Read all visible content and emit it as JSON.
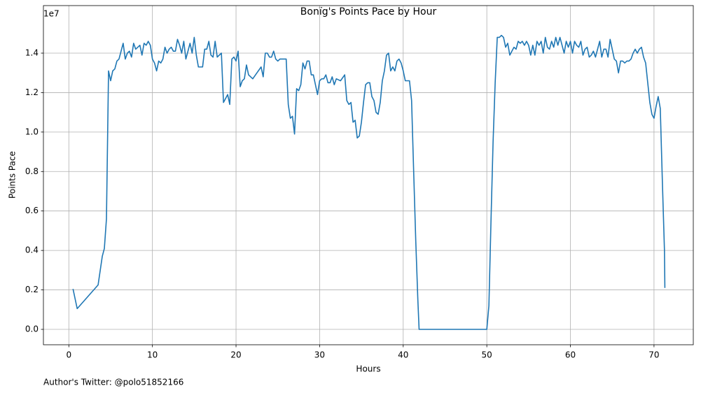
{
  "chart_data": {
    "type": "line",
    "title": "Bonïg's Points Pace by Hour",
    "x_label": "Hours",
    "y_label": "Points Pace",
    "y_offset_label": "1e7",
    "footnote": "Author's Twitter: @polo51852166",
    "color": "#1f77b4",
    "grid": true,
    "xlim": [
      -3.04,
      74.7
    ],
    "ylim": [
      -780000,
      16410000
    ],
    "xticks": [
      0,
      10,
      20,
      30,
      40,
      50,
      60,
      70
    ],
    "yticks": [
      {
        "value": 0,
        "label": "0.0"
      },
      {
        "value": 2000000,
        "label": "0.2"
      },
      {
        "value": 4000000,
        "label": "0.4"
      },
      {
        "value": 6000000,
        "label": "0.6"
      },
      {
        "value": 8000000,
        "label": "0.8"
      },
      {
        "value": 10000000,
        "label": "1.0"
      },
      {
        "value": 12000000,
        "label": "1.2"
      },
      {
        "value": 14000000,
        "label": "1.4"
      }
    ],
    "x": [
      0.5,
      1.0,
      3.5,
      4.0,
      4.25,
      4.5,
      4.75,
      5.0,
      5.25,
      5.5,
      5.75,
      6.0,
      6.5,
      6.75,
      7.0,
      7.25,
      7.5,
      7.75,
      8.0,
      8.5,
      8.75,
      9.0,
      9.25,
      9.5,
      9.75,
      10.0,
      10.25,
      10.5,
      10.75,
      11.0,
      11.25,
      11.5,
      11.75,
      12.0,
      12.25,
      12.5,
      12.75,
      13.0,
      13.25,
      13.5,
      13.75,
      14.0,
      14.5,
      14.75,
      15.0,
      15.25,
      15.5,
      16.0,
      16.25,
      16.5,
      16.75,
      17.0,
      17.25,
      17.5,
      17.75,
      18.25,
      18.5,
      18.75,
      19.0,
      19.25,
      19.5,
      19.75,
      20.0,
      20.25,
      20.5,
      20.75,
      21.0,
      21.25,
      21.5,
      22.0,
      22.5,
      23.0,
      23.25,
      23.5,
      23.75,
      24.0,
      24.25,
      24.5,
      24.75,
      25.0,
      25.25,
      26.0,
      26.25,
      26.5,
      26.75,
      27.0,
      27.25,
      27.5,
      27.75,
      28.0,
      28.25,
      28.5,
      28.75,
      29.0,
      29.25,
      29.5,
      29.75,
      30.0,
      30.25,
      30.5,
      30.75,
      31.0,
      31.25,
      31.5,
      31.75,
      32.0,
      32.5,
      33.0,
      33.25,
      33.5,
      33.75,
      34.0,
      34.25,
      34.5,
      34.75,
      35.0,
      35.25,
      35.5,
      35.75,
      36.0,
      36.25,
      36.5,
      36.75,
      37.0,
      37.25,
      37.5,
      37.75,
      38.0,
      38.25,
      38.5,
      38.75,
      39.0,
      39.25,
      39.5,
      39.75,
      40.0,
      40.25,
      40.5,
      40.75,
      41.0,
      41.25,
      41.5,
      41.75,
      41.9,
      50.0,
      50.25,
      50.5,
      50.75,
      51.0,
      51.25,
      51.5,
      51.75,
      52.0,
      52.25,
      52.5,
      52.75,
      53.0,
      53.25,
      53.5,
      53.75,
      54.0,
      54.25,
      54.5,
      54.75,
      55.0,
      55.25,
      55.5,
      55.75,
      56.0,
      56.25,
      56.5,
      56.75,
      57.0,
      57.25,
      57.5,
      57.75,
      58.0,
      58.25,
      58.5,
      58.75,
      59.0,
      59.25,
      59.5,
      59.75,
      60.0,
      60.25,
      60.5,
      60.75,
      61.0,
      61.25,
      61.5,
      61.75,
      62.0,
      62.25,
      62.5,
      62.75,
      63.0,
      63.25,
      63.5,
      63.75,
      64.0,
      64.25,
      64.5,
      64.75,
      65.0,
      65.25,
      65.5,
      65.75,
      66.0,
      66.25,
      66.5,
      66.75,
      67.0,
      67.25,
      67.5,
      67.75,
      68.0,
      68.25,
      68.5,
      68.75,
      69.0,
      69.25,
      69.5,
      69.75,
      70.0,
      70.25,
      70.5,
      70.75,
      71.0,
      71.25,
      71.3
    ],
    "values": [
      2050000,
      1050000,
      2250000,
      3700000,
      4100000,
      5600000,
      13100000,
      12600000,
      13100000,
      13200000,
      13600000,
      13700000,
      14500000,
      13700000,
      14000000,
      14100000,
      13800000,
      14500000,
      14200000,
      14400000,
      13900000,
      14500000,
      14400000,
      14600000,
      14400000,
      13700000,
      13500000,
      13100000,
      13600000,
      13500000,
      13700000,
      14300000,
      14000000,
      14200000,
      14300000,
      14100000,
      14100000,
      14700000,
      14400000,
      14000000,
      14600000,
      13700000,
      14500000,
      14000000,
      14800000,
      13900000,
      13300000,
      13300000,
      14200000,
      14200000,
      14600000,
      13900000,
      13800000,
      14600000,
      13800000,
      14000000,
      11500000,
      11700000,
      11900000,
      11400000,
      13700000,
      13800000,
      13600000,
      14100000,
      12300000,
      12600000,
      12700000,
      13400000,
      12900000,
      12700000,
      13000000,
      13300000,
      12800000,
      14000000,
      14000000,
      13800000,
      13800000,
      14100000,
      13700000,
      13600000,
      13700000,
      13700000,
      11400000,
      10700000,
      10800000,
      9900000,
      12200000,
      12100000,
      12400000,
      13500000,
      13200000,
      13600000,
      13600000,
      12900000,
      12900000,
      12400000,
      11900000,
      12600000,
      12700000,
      12700000,
      12900000,
      12500000,
      12500000,
      12800000,
      12400000,
      12700000,
      12600000,
      12900000,
      11600000,
      11400000,
      11500000,
      10500000,
      10600000,
      9700000,
      9800000,
      10500000,
      11500000,
      12400000,
      12500000,
      12500000,
      11800000,
      11600000,
      11000000,
      10900000,
      11500000,
      12600000,
      13100000,
      13900000,
      14000000,
      13100000,
      13300000,
      13100000,
      13600000,
      13700000,
      13500000,
      13100000,
      12600000,
      12600000,
      12600000,
      11600000,
      8000000,
      4500000,
      1500000,
      0,
      0,
      1200000,
      5500000,
      9500000,
      12500000,
      14800000,
      14800000,
      14900000,
      14800000,
      14300000,
      14500000,
      13900000,
      14100000,
      14300000,
      14200000,
      14600000,
      14500000,
      14600000,
      14400000,
      14600000,
      14400000,
      13900000,
      14400000,
      13900000,
      14600000,
      14400000,
      14600000,
      14000000,
      14800000,
      14300000,
      14200000,
      14600000,
      14300000,
      14800000,
      14400000,
      14800000,
      14400000,
      14000000,
      14600000,
      14300000,
      14600000,
      14000000,
      14600000,
      14400000,
      14300000,
      14600000,
      13900000,
      14200000,
      14300000,
      13800000,
      13900000,
      14100000,
      13800000,
      14200000,
      14600000,
      13800000,
      14200000,
      14200000,
      13800000,
      14700000,
      14200000,
      13700000,
      13600000,
      13000000,
      13600000,
      13600000,
      13500000,
      13600000,
      13600000,
      13700000,
      14000000,
      14200000,
      14000000,
      14200000,
      14300000,
      13800000,
      13500000,
      12500000,
      11500000,
      10900000,
      10700000,
      11300000,
      11800000,
      11200000,
      7500000,
      4000000,
      2100000
    ]
  }
}
